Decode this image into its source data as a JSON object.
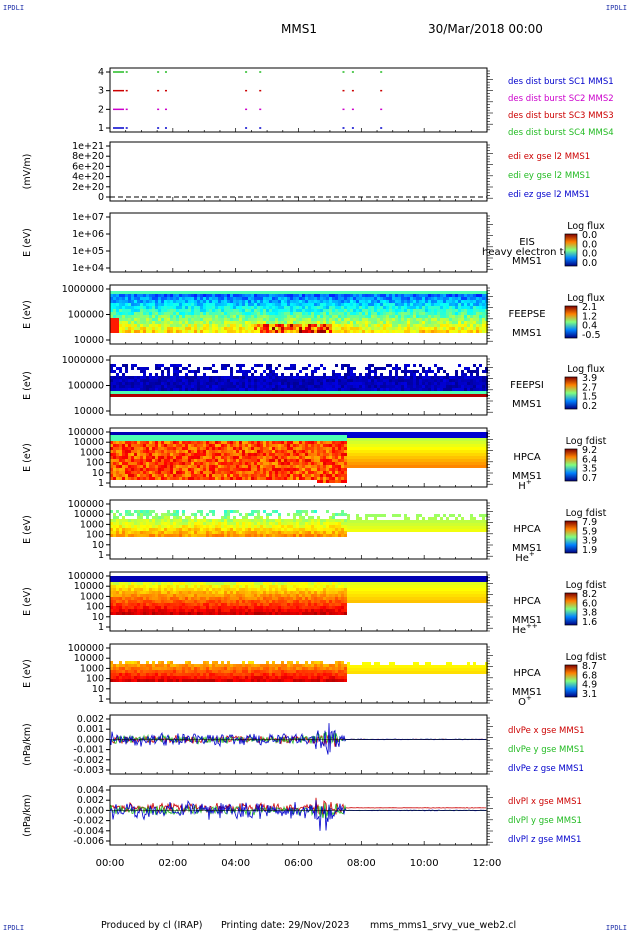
{
  "corners": {
    "tl": "IPDLI",
    "tr": "IPDLI",
    "bl": "IPDLI",
    "br": "IPDLI"
  },
  "header": {
    "spacecraft": "MMS1",
    "date": "30/Mar/2018 00:00"
  },
  "footer": {
    "producer": "Produced by cl (IRAP)",
    "printing": "Printing date: 29/Nov/2023",
    "file": "mms_mms1_srvy_vue_web2.cl"
  },
  "x_axis": {
    "ticks": [
      "00:00",
      "02:00",
      "04:00",
      "06:00",
      "08:00",
      "10:00",
      "12:00"
    ]
  },
  "colors": {
    "blue": "#0000cc",
    "red": "#cc0000",
    "magenta": "#cc00cc",
    "green": "#22bb22"
  },
  "chart_data": [
    {
      "type": "scatter",
      "panel": "burst",
      "yticks": [
        "4",
        "3",
        "2",
        "1"
      ],
      "x": [
        "00:00",
        "12:00"
      ],
      "legend": [
        {
          "label": "des dist burst SC1 MMS1",
          "color": "#0000cc"
        },
        {
          "label": "des dist burst SC2 MMS2",
          "color": "#cc00cc"
        },
        {
          "label": "des dist burst SC3 MMS3",
          "color": "#cc0000"
        },
        {
          "label": "des dist burst SC4 MMS4",
          "color": "#22bb22"
        }
      ],
      "series": [
        {
          "level": 4,
          "color": "#22bb22",
          "times_h": [
            0.5,
            1.5,
            1.75,
            4.3,
            4.75,
            7.4,
            7.7,
            8.6
          ]
        },
        {
          "level": 3,
          "color": "#cc0000",
          "times_h": [
            0.5,
            1.5,
            1.75,
            4.3,
            4.75,
            7.4,
            7.7,
            8.6
          ]
        },
        {
          "level": 2,
          "color": "#cc00cc",
          "times_h": [
            0.5,
            1.5,
            1.75,
            4.3,
            4.75,
            7.4,
            7.7,
            8.6
          ]
        },
        {
          "level": 1,
          "color": "#0000cc",
          "times_h": [
            0.5,
            1.5,
            1.75,
            4.3,
            4.75,
            7.4,
            7.7,
            8.6
          ]
        }
      ]
    },
    {
      "type": "line",
      "panel": "edi",
      "ylabel": "(mV/m)",
      "yticks": [
        "1e+21",
        "8e+20",
        "6e+20",
        "4e+20",
        "2e+20",
        "0"
      ],
      "legend": [
        {
          "label": "edi ex gse l2 MMS1",
          "color": "#cc0000"
        },
        {
          "label": "edi ey gse l2 MMS1",
          "color": "#22bb22"
        },
        {
          "label": "edi ez gse l2 MMS1",
          "color": "#0000cc"
        }
      ]
    },
    {
      "type": "heatmap",
      "panel": "eis",
      "ylabel": "E (eV)",
      "yticks": [
        "1e+07",
        "1e+06",
        "1e+05",
        "1e+04"
      ],
      "name": "EIS",
      "sc": "MMS1",
      "extra": "heavy electron to",
      "cbar_title": "Log flux",
      "cbar": [
        "0.0",
        "0.0",
        "0.0",
        "0.0"
      ]
    },
    {
      "type": "heatmap",
      "panel": "feepse",
      "ylabel": "E (eV)",
      "yticks": [
        "1000000",
        "100000",
        "10000"
      ],
      "name": "FEEPSE",
      "sc": "MMS1",
      "cbar_title": "Log flux",
      "cbar": [
        "2.1",
        "1.2",
        "0.4",
        "-0.5"
      ]
    },
    {
      "type": "heatmap",
      "panel": "feepsi",
      "ylabel": "E (eV)",
      "yticks": [
        "1000000",
        "100000",
        "10000"
      ],
      "name": "FEEPSI",
      "sc": "MMS1",
      "cbar_title": "Log flux",
      "cbar": [
        "3.9",
        "2.7",
        "1.5",
        "0.2"
      ]
    },
    {
      "type": "heatmap",
      "panel": "hpca_h",
      "ylabel": "E (eV)",
      "yticks": [
        "100000",
        "10000",
        "1000",
        "100",
        "10",
        "1"
      ],
      "name": "HPCA",
      "sc": "MMS1",
      "species": "H",
      "charge": "+",
      "cbar_title": "Log fdist",
      "cbar": [
        "9.2",
        "6.4",
        "3.5",
        "0.7"
      ]
    },
    {
      "type": "heatmap",
      "panel": "hpca_he1",
      "ylabel": "E (eV)",
      "yticks": [
        "100000",
        "10000",
        "1000",
        "100",
        "10",
        "1"
      ],
      "name": "HPCA",
      "sc": "MMS1",
      "species": "He",
      "charge": "+",
      "cbar_title": "Log fdist",
      "cbar": [
        "7.9",
        "5.9",
        "3.9",
        "1.9"
      ]
    },
    {
      "type": "heatmap",
      "panel": "hpca_he2",
      "ylabel": "E (eV)",
      "yticks": [
        "100000",
        "10000",
        "1000",
        "100",
        "10",
        "1"
      ],
      "name": "HPCA",
      "sc": "MMS1",
      "species": "He",
      "charge": "++",
      "cbar_title": "Log fdist",
      "cbar": [
        "8.2",
        "6.0",
        "3.8",
        "1.6"
      ]
    },
    {
      "type": "heatmap",
      "panel": "hpca_o",
      "ylabel": "E (eV)",
      "yticks": [
        "100000",
        "10000",
        "1000",
        "100",
        "10",
        "1"
      ],
      "name": "HPCA",
      "sc": "MMS1",
      "species": "O",
      "charge": "+",
      "cbar_title": "Log fdist",
      "cbar": [
        "8.7",
        "6.8",
        "4.9",
        "3.1"
      ]
    },
    {
      "type": "line",
      "panel": "dvpe",
      "ylabel": "(nPa/km)",
      "yticks": [
        "0.002",
        "0.001",
        "0.000",
        "-0.001",
        "-0.002",
        "-0.003"
      ],
      "ylim": [
        -0.003,
        0.002
      ],
      "legend": [
        {
          "label": "dlvPe x gse MMS1",
          "color": "#cc0000"
        },
        {
          "label": "dlvPe y gse MMS1",
          "color": "#22bb22"
        },
        {
          "label": "dlvPe z gse MMS1",
          "color": "#0000cc"
        }
      ]
    },
    {
      "type": "line",
      "panel": "dvpi",
      "ylabel": "(nPa/km)",
      "yticks": [
        "0.004",
        "0.002",
        "0.000",
        "-0.002",
        "-0.004",
        "-0.006"
      ],
      "ylim": [
        -0.006,
        0.004
      ],
      "legend": [
        {
          "label": "dlvPl x gse MMS1",
          "color": "#cc0000"
        },
        {
          "label": "dlvPl y gse MMS1",
          "color": "#22bb22"
        },
        {
          "label": "dlvPl z gse MMS1",
          "color": "#0000cc"
        }
      ]
    }
  ]
}
